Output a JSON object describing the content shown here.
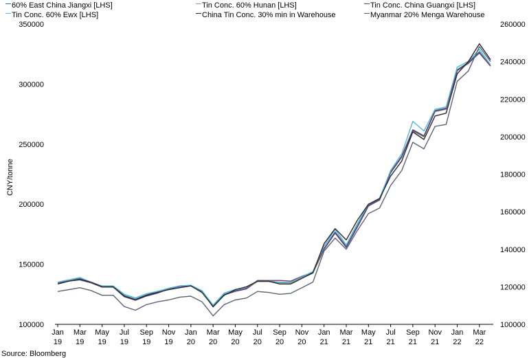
{
  "chart_data": {
    "type": "line",
    "ylabel": "CNY/tonne",
    "source": "Source: Bloomberg",
    "ylim_left": [
      100000,
      350000
    ],
    "ylim_right": [
      100000,
      260000
    ],
    "left_ticks": [
      "350000",
      "300000",
      "250000",
      "200000",
      "150000",
      "100000"
    ],
    "right_ticks": [
      "260000",
      "240000",
      "220000",
      "200000",
      "180000",
      "160000",
      "140000",
      "120000",
      "100000"
    ],
    "x_tick_labels": [
      [
        "Jan",
        "19"
      ],
      [
        "Mar",
        "19"
      ],
      [
        "May",
        "19"
      ],
      [
        "Jul",
        "19"
      ],
      [
        "Sep",
        "19"
      ],
      [
        "Nov",
        "19"
      ],
      [
        "Jan",
        "20"
      ],
      [
        "Mar",
        "20"
      ],
      [
        "May",
        "20"
      ],
      [
        "Jul",
        "20"
      ],
      [
        "Sep",
        "20"
      ],
      [
        "Nov",
        "20"
      ],
      [
        "Jan",
        "21"
      ],
      [
        "Mar",
        "21"
      ],
      [
        "May",
        "21"
      ],
      [
        "Jul",
        "21"
      ],
      [
        "Sep",
        "21"
      ],
      [
        "Nov",
        "21"
      ],
      [
        "Jan",
        "22"
      ],
      [
        "Mar",
        "22"
      ]
    ],
    "x": [
      "2019-01",
      "2019-02",
      "2019-03",
      "2019-04",
      "2019-05",
      "2019-06",
      "2019-07",
      "2019-08",
      "2019-09",
      "2019-10",
      "2019-11",
      "2019-12",
      "2020-01",
      "2020-02",
      "2020-03",
      "2020-04",
      "2020-05",
      "2020-06",
      "2020-07",
      "2020-08",
      "2020-09",
      "2020-10",
      "2020-11",
      "2020-12",
      "2021-01",
      "2021-02",
      "2021-03",
      "2021-04",
      "2021-05",
      "2021-06",
      "2021-07",
      "2021-08",
      "2021-09",
      "2021-10",
      "2021-11",
      "2021-12",
      "2022-01",
      "2022-02",
      "2022-03",
      "2022-04"
    ],
    "series": [
      {
        "name": "60% East China Jiangxi [LHS]",
        "axis": "left",
        "color": "#2f6f9f",
        "values": [
          135000,
          137000,
          138000,
          135000,
          131500,
          131500,
          124000,
          121000,
          124500,
          127000,
          130000,
          132000,
          132500,
          128000,
          115000,
          125000,
          128000,
          130000,
          136000,
          136000,
          135000,
          135000,
          139000,
          143000,
          163000,
          177000,
          165000,
          182000,
          199000,
          204000,
          227000,
          240000,
          262000,
          257000,
          278000,
          280000,
          312000,
          318000,
          327000,
          315000
        ]
      },
      {
        "name": "Tin Conc. 60% Hunan [LHS]",
        "axis": "left",
        "color": "#a0a070",
        "values": [
          135000,
          136500,
          137500,
          135000,
          131000,
          131000,
          123500,
          120500,
          124000,
          126500,
          129500,
          131500,
          132000,
          127500,
          114500,
          124500,
          127500,
          129500,
          135500,
          135500,
          134500,
          134500,
          138500,
          142500,
          162000,
          176000,
          164000,
          181000,
          198500,
          203500,
          226000,
          239000,
          261000,
          256000,
          277000,
          279000,
          311000,
          317000,
          326000,
          315000
        ]
      },
      {
        "name": "Tin Conc. China Guangxi [LHS]",
        "axis": "left",
        "color": "#6b3a7a",
        "values": [
          134500,
          136000,
          137000,
          134500,
          131000,
          131000,
          123000,
          120000,
          123500,
          126000,
          129500,
          131500,
          132000,
          127500,
          114500,
          124500,
          127500,
          129500,
          136500,
          136500,
          136500,
          136000,
          140000,
          143500,
          163000,
          176000,
          164000,
          181000,
          198500,
          203500,
          226500,
          239500,
          261500,
          256500,
          277500,
          279500,
          311500,
          317500,
          326000,
          315000
        ]
      },
      {
        "name": "Tin Conc. 60% Ewx [LHS]",
        "axis": "left",
        "color": "#4fb8d8",
        "values": [
          135000,
          137000,
          139000,
          135000,
          132000,
          132000,
          125000,
          122000,
          125500,
          127500,
          130000,
          132000,
          132500,
          128000,
          116000,
          126000,
          129000,
          131000,
          136000,
          136000,
          135000,
          135000,
          139500,
          144000,
          165000,
          179000,
          166000,
          184000,
          200000,
          205000,
          228000,
          242000,
          269000,
          261000,
          279000,
          281000,
          314000,
          319000,
          329000,
          316000
        ]
      },
      {
        "name": "China Tin Conc. 30% min in Warehouse",
        "axis": "right",
        "color": "#2a2a2a",
        "values": [
          121500,
          123000,
          124000,
          122500,
          120000,
          120000,
          115000,
          113000,
          115500,
          117000,
          118500,
          119500,
          120500,
          117000,
          109500,
          115500,
          118500,
          120000,
          123000,
          123000,
          121500,
          121500,
          124500,
          127500,
          143000,
          151000,
          145000,
          155500,
          164000,
          167000,
          179000,
          187000,
          202500,
          198500,
          211000,
          212500,
          233500,
          240000,
          249500,
          241000
        ]
      },
      {
        "name": "Myanmar 20% Menga Warehouse",
        "axis": "right",
        "color": "#5a6478",
        "values": [
          117500,
          118500,
          119500,
          118000,
          115500,
          115500,
          109500,
          107500,
          110500,
          112000,
          113000,
          114500,
          115000,
          112000,
          104500,
          110500,
          113000,
          114000,
          117500,
          117000,
          116000,
          116500,
          119500,
          122500,
          139000,
          146000,
          140000,
          150000,
          159000,
          162000,
          174000,
          182000,
          197000,
          193500,
          205500,
          206500,
          229500,
          235000,
          248000,
          240000
        ]
      }
    ]
  }
}
